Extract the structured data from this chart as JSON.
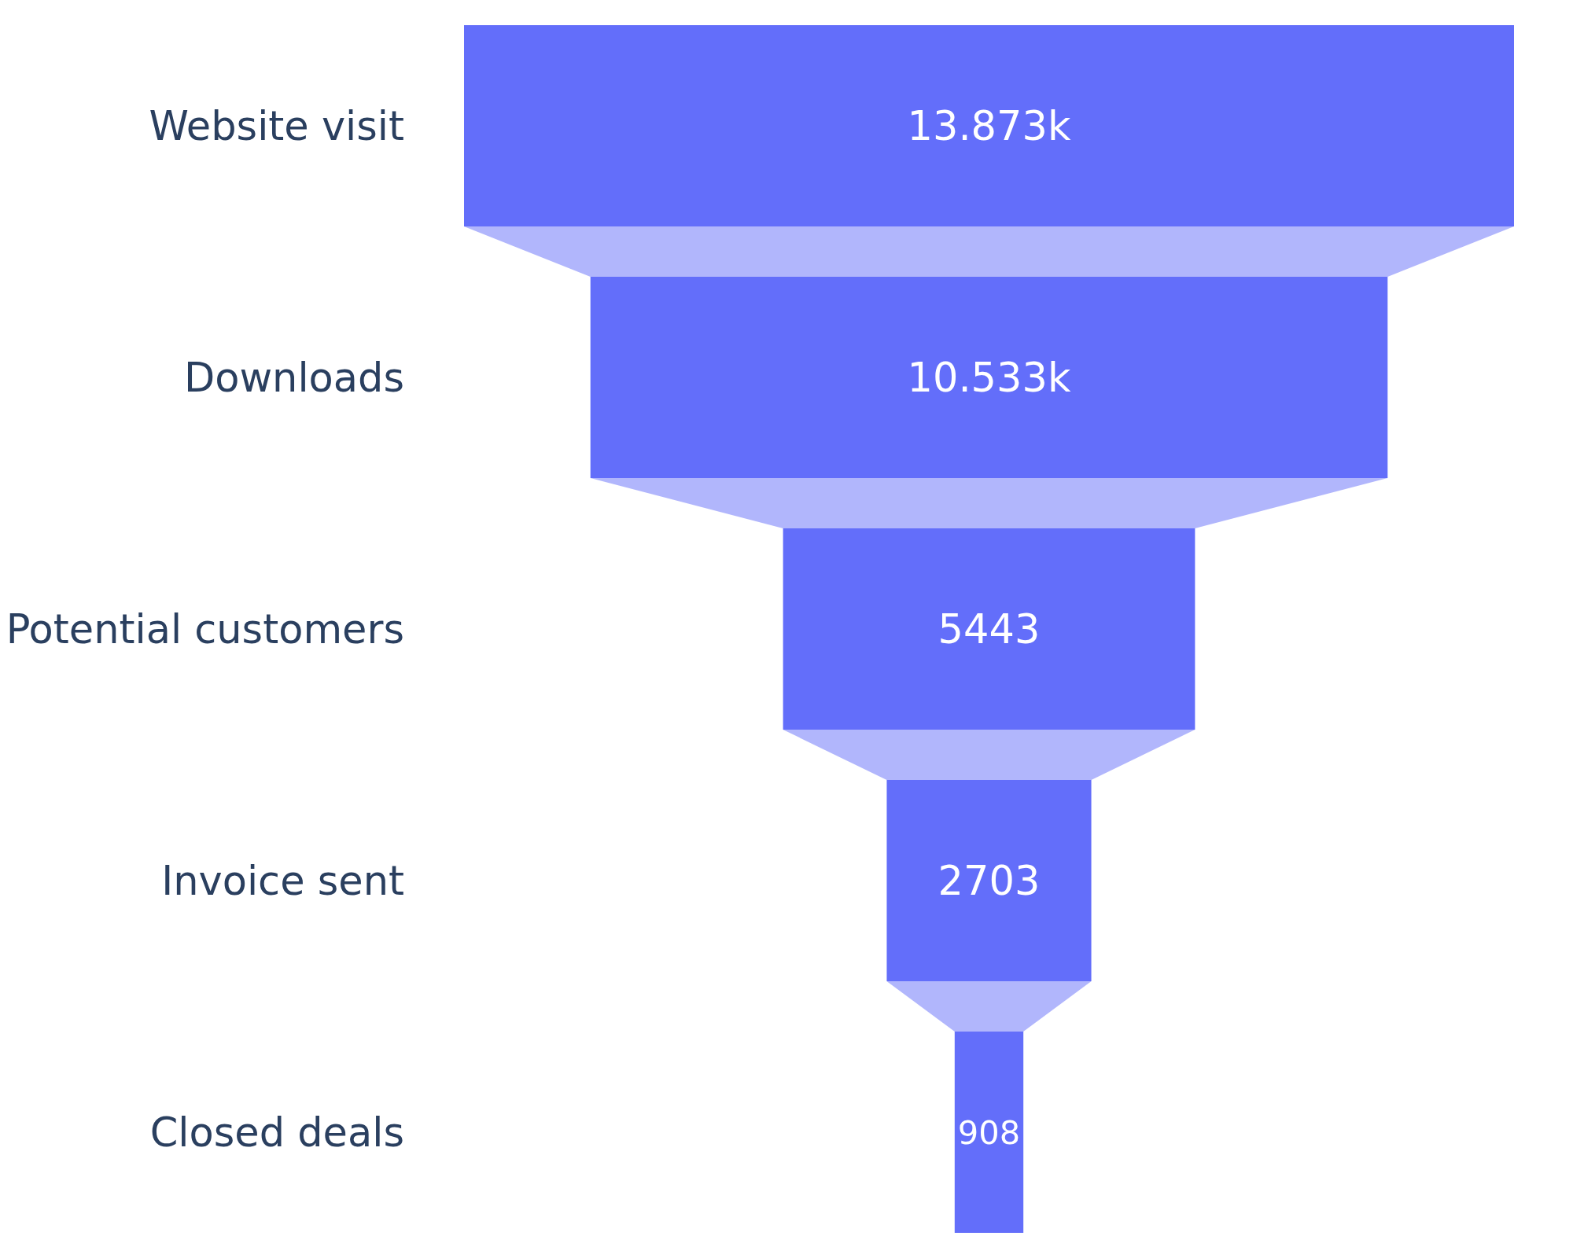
{
  "chart_data": {
    "type": "other",
    "categories": [
      "Website visit",
      "Downloads",
      "Potential customers",
      "Invoice sent",
      "Closed deals"
    ],
    "values": [
      13873,
      10533,
      5443,
      2703,
      908
    ],
    "value_labels": [
      "13.873k",
      "10.533k",
      "5443",
      "2703",
      "908"
    ],
    "color": "#636efa"
  }
}
